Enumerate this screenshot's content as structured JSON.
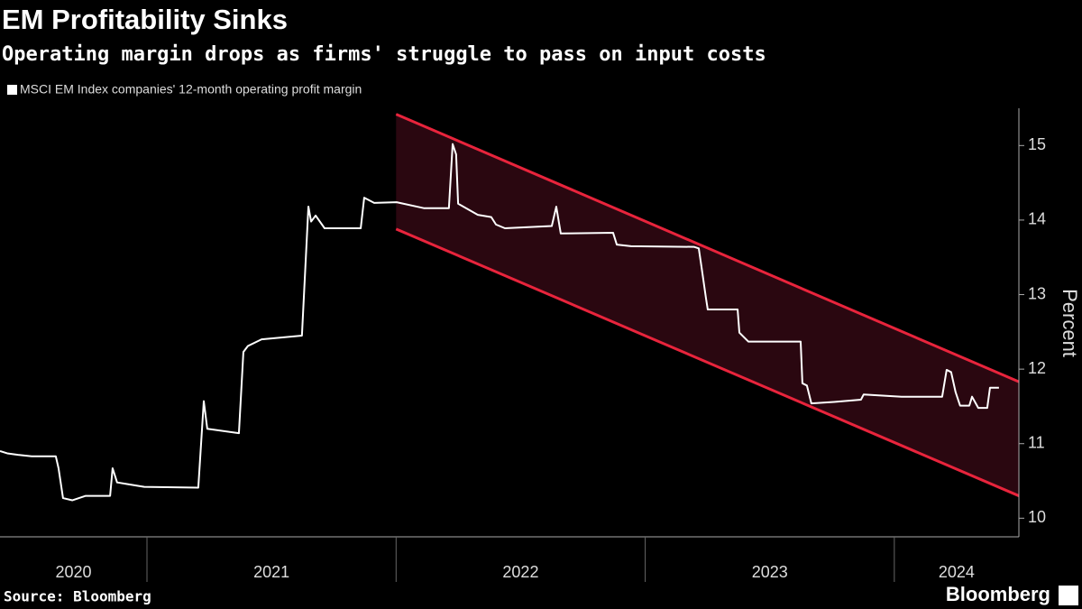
{
  "chart_data": {
    "type": "line",
    "title": "EM Profitability Sinks",
    "subtitle": "Operating margin drops as firms' struggle to pass on input costs",
    "y_label": "Percent",
    "source": "Source: Bloomberg",
    "brand": "Bloomberg",
    "x": [
      2020.41,
      2020.439,
      2020.482,
      2020.537,
      2020.634,
      2020.645,
      2020.663,
      2020.7,
      2020.754,
      2020.852,
      2020.862,
      2020.88,
      2020.917,
      2020.989,
      2021.206,
      2021.228,
      2021.242,
      2021.369,
      2021.387,
      2021.405,
      2021.46,
      2021.622,
      2021.648,
      2021.659,
      2021.677,
      2021.713,
      2021.858,
      2021.872,
      2021.912,
      2022.002,
      2022.111,
      2022.212,
      2022.227,
      2022.241,
      2022.249,
      2022.328,
      2022.382,
      2022.401,
      2022.437,
      2022.625,
      2022.643,
      2022.661,
      2022.871,
      2022.886,
      2022.943,
      2023.197,
      2023.215,
      2023.226,
      2023.244,
      2023.251,
      2023.371,
      2023.378,
      2023.414,
      2023.624,
      2023.631,
      2023.649,
      2023.667,
      2023.758,
      2023.866,
      2023.877,
      2024.029,
      2024.192,
      2024.21,
      2024.228,
      2024.246,
      2024.264,
      2024.301,
      2024.312,
      2024.337,
      2024.373,
      2024.384,
      2024.42
    ],
    "series": [
      {
        "name": "MSCI EM Index companies' 12-month operating profit margin",
        "color": "#ffffff",
        "values": [
          10.9,
          10.87,
          10.85,
          10.83,
          10.83,
          10.67,
          10.27,
          10.24,
          10.3,
          10.3,
          10.67,
          10.48,
          10.46,
          10.42,
          10.41,
          11.57,
          11.2,
          11.14,
          12.23,
          12.31,
          12.4,
          12.45,
          14.18,
          13.98,
          14.06,
          13.89,
          13.89,
          14.3,
          14.23,
          14.24,
          14.16,
          14.16,
          15.02,
          14.88,
          14.22,
          14.07,
          14.04,
          13.94,
          13.89,
          13.92,
          14.18,
          13.82,
          13.83,
          13.67,
          13.65,
          13.64,
          13.62,
          13.37,
          12.95,
          12.8,
          12.8,
          12.49,
          12.37,
          12.37,
          11.81,
          11.78,
          11.54,
          11.56,
          11.59,
          11.66,
          11.63,
          11.63,
          11.99,
          11.96,
          11.69,
          11.51,
          11.51,
          11.63,
          11.48,
          11.48,
          11.75,
          11.75
        ]
      }
    ],
    "channel": {
      "x": [
        2022.0,
        2024.5
      ],
      "upper": [
        15.42,
        11.83
      ],
      "lower": [
        13.88,
        10.3
      ],
      "color": "#e8243c",
      "fill": "#2a0710"
    },
    "xlim": [
      2020.41,
      2024.5
    ],
    "xticks": [
      2020,
      2021,
      2022,
      2023,
      2024
    ],
    "ylim": [
      9.75,
      15.5
    ],
    "yticks": [
      10,
      11,
      12,
      13,
      14,
      15
    ],
    "grid": false
  }
}
